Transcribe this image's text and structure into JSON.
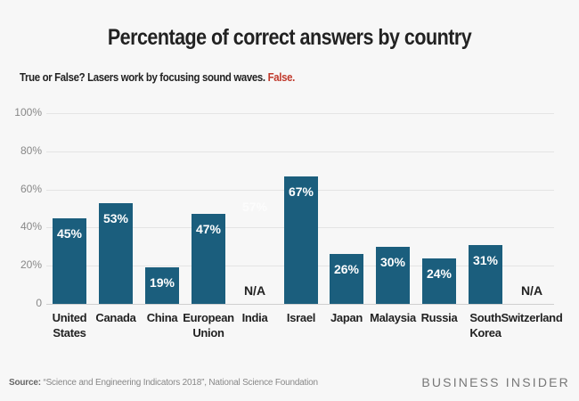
{
  "header": {
    "title": "Percentage of correct answers by country",
    "question": "True or False? Lasers work by focusing sound waves.",
    "answer": "False."
  },
  "footer": {
    "source_label": "Source:",
    "source_text": "“Science and Engineering Indicators 2018”, National Science Foundation",
    "brand": "BUSINESS INSIDER"
  },
  "colors": {
    "bar": "#1b5e7d",
    "answer": "#c0392b",
    "background": "#f7f7f7"
  },
  "chart_data": {
    "type": "bar",
    "title": "Percentage of correct answers by country",
    "subtitle": "True or False? Lasers work by focusing sound waves. False.",
    "xlabel": "",
    "ylabel": "",
    "ylim": [
      0,
      100
    ],
    "yticks": [
      "0",
      "20%",
      "40%",
      "60%",
      "80%",
      "100%"
    ],
    "grid": true,
    "legend": null,
    "categories": [
      "United States",
      "Canada",
      "China",
      "European Union",
      "India",
      "Israel",
      "Japan",
      "Malaysia",
      "Russia",
      "South Korea",
      "Switzerland"
    ],
    "values": [
      45,
      53,
      19,
      47,
      null,
      67,
      26,
      30,
      24,
      31,
      null
    ],
    "data_labels": [
      "45%",
      "53%",
      "19%",
      "47%",
      "N/A",
      "67%",
      "26%",
      "30%",
      "24%",
      "31%",
      "N/A"
    ],
    "annotations": [
      "57% (faint ghost label above India)"
    ]
  },
  "bars": [
    {
      "label1": "United",
      "label2": "States",
      "value": 45,
      "text": "45%"
    },
    {
      "label1": "Canada",
      "label2": "",
      "value": 53,
      "text": "53%"
    },
    {
      "label1": "China",
      "label2": "",
      "value": 19,
      "text": "19%"
    },
    {
      "label1": "European",
      "label2": "Union",
      "value": 47,
      "text": "47%"
    },
    {
      "label1": "India",
      "label2": "",
      "value": null,
      "text": "N/A",
      "ghost": "57%"
    },
    {
      "label1": "Israel",
      "label2": "",
      "value": 67,
      "text": "67%"
    },
    {
      "label1": "Japan",
      "label2": "",
      "value": 26,
      "text": "26%"
    },
    {
      "label1": "Malaysia",
      "label2": "",
      "value": 30,
      "text": "30%"
    },
    {
      "label1": "Russia",
      "label2": "",
      "value": 24,
      "text": "24%"
    },
    {
      "label1": "South",
      "label2": "Korea",
      "value": 31,
      "text": "31%"
    },
    {
      "label1": "Switzerland",
      "label2": "",
      "value": null,
      "text": "N/A"
    }
  ]
}
